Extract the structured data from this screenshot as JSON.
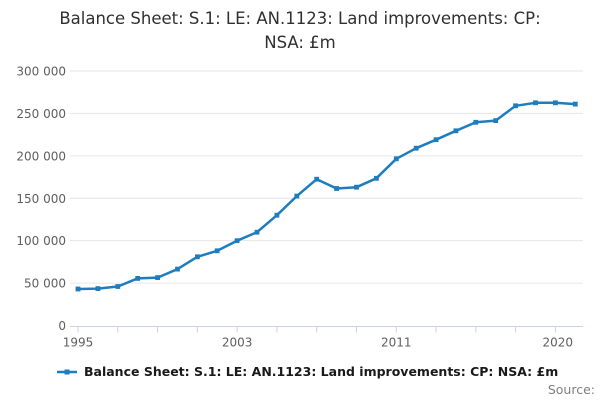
{
  "title": "Balance Sheet: S.1: LE: AN.1123: Land improvements: CP:\nNSA: £m",
  "legend": {
    "label": "Balance Sheet: S.1: LE: AN.1123: Land improvements: CP: NSA: £m"
  },
  "source_label": "Source:",
  "colors": {
    "line": "#1d7dbe",
    "marker": "#1d7dbe",
    "grid": "#e6e6e6",
    "axis": "#c8d4e3",
    "tick_label": "#5f5f5f",
    "title": "#303030",
    "source": "#7f7f7f"
  },
  "chart_data": {
    "type": "line",
    "title": "Balance Sheet: S.1: LE: AN.1123: Land improvements: CP: NSA: £m",
    "x": [
      1995,
      1996,
      1997,
      1998,
      1999,
      2000,
      2001,
      2002,
      2003,
      2004,
      2005,
      2006,
      2007,
      2008,
      2009,
      2010,
      2011,
      2012,
      2013,
      2014,
      2015,
      2016,
      2017,
      2018,
      2019,
      2020
    ],
    "series": [
      {
        "name": "Balance Sheet: S.1: LE: AN.1123: Land improvements: CP: NSA: £m",
        "values": [
          43000,
          43500,
          46000,
          55500,
          56500,
          66500,
          81000,
          88000,
          100000,
          110000,
          130000,
          152500,
          172500,
          161500,
          163000,
          173500,
          196500,
          209000,
          219000,
          229500,
          239500,
          241500,
          259000,
          262500,
          262500,
          261000
        ]
      }
    ],
    "xlabel": "",
    "ylabel": "",
    "xlim": [
      1995,
      2020
    ],
    "ylim": [
      0,
      300000
    ],
    "yticks": [
      0,
      50000,
      100000,
      150000,
      200000,
      250000,
      300000
    ],
    "ytick_labels": [
      "0",
      "50 000",
      "100 000",
      "150 000",
      "200 000",
      "250 000",
      "300 000"
    ],
    "xtick_years": [
      1995,
      1997,
      1999,
      2001,
      2003,
      2005,
      2007,
      2009,
      2011,
      2013,
      2015,
      2017,
      2019
    ],
    "xtick_labels": [
      {
        "text": "1995",
        "year": 1995,
        "anchor": "middle"
      },
      {
        "text": "2003",
        "year": 2003,
        "anchor": "middle"
      },
      {
        "text": "2011",
        "year": 2011,
        "anchor": "middle"
      },
      {
        "text": "2020",
        "year": 2020,
        "anchor": "end"
      }
    ],
    "grid": "horizontal",
    "legend_position": "bottom-left",
    "marker": "square"
  }
}
